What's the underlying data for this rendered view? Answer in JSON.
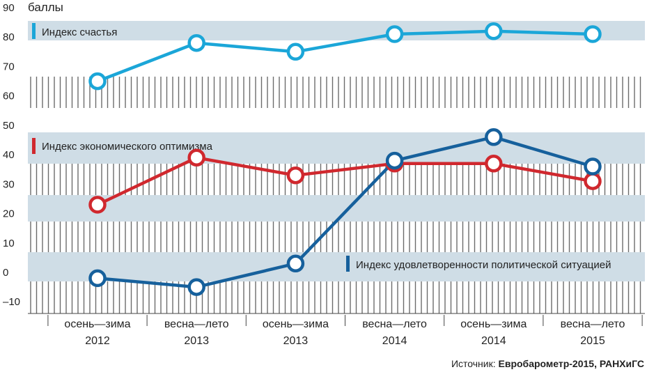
{
  "chart_data": {
    "type": "line",
    "unit_label": "баллы",
    "categories": [
      [
        "осень—зима",
        "2012"
      ],
      [
        "весна—лето",
        "2013"
      ],
      [
        "осень—зима",
        "2013"
      ],
      [
        "весна—лето",
        "2014"
      ],
      [
        "осень—зима",
        "2014"
      ],
      [
        "весна—лето",
        "2015"
      ]
    ],
    "ylim": [
      -15,
      90
    ],
    "yticks": [
      90,
      80,
      70,
      60,
      50,
      40,
      30,
      20,
      10,
      0,
      -10
    ],
    "ytick_labels": [
      "90",
      "80",
      "70",
      "60",
      "50",
      "40",
      "30",
      "20",
      "10",
      "0",
      "–10"
    ],
    "series": [
      {
        "name": "Индекс счастья",
        "color": "#1ba6d8",
        "values": [
          65,
          78,
          75,
          81,
          82,
          81
        ]
      },
      {
        "name": "Индекс экономического оптимизма",
        "color": "#d0282e",
        "values": [
          23,
          39,
          33,
          37,
          37,
          31
        ]
      },
      {
        "name": "Индекс удовлетворенности политической ситуацией",
        "color": "#16609c",
        "values": [
          -2,
          -5,
          3,
          38,
          46,
          36
        ]
      }
    ],
    "source_prefix": "Источник: ",
    "source_text": "Евробарометр-2015, РАНХиГС"
  }
}
